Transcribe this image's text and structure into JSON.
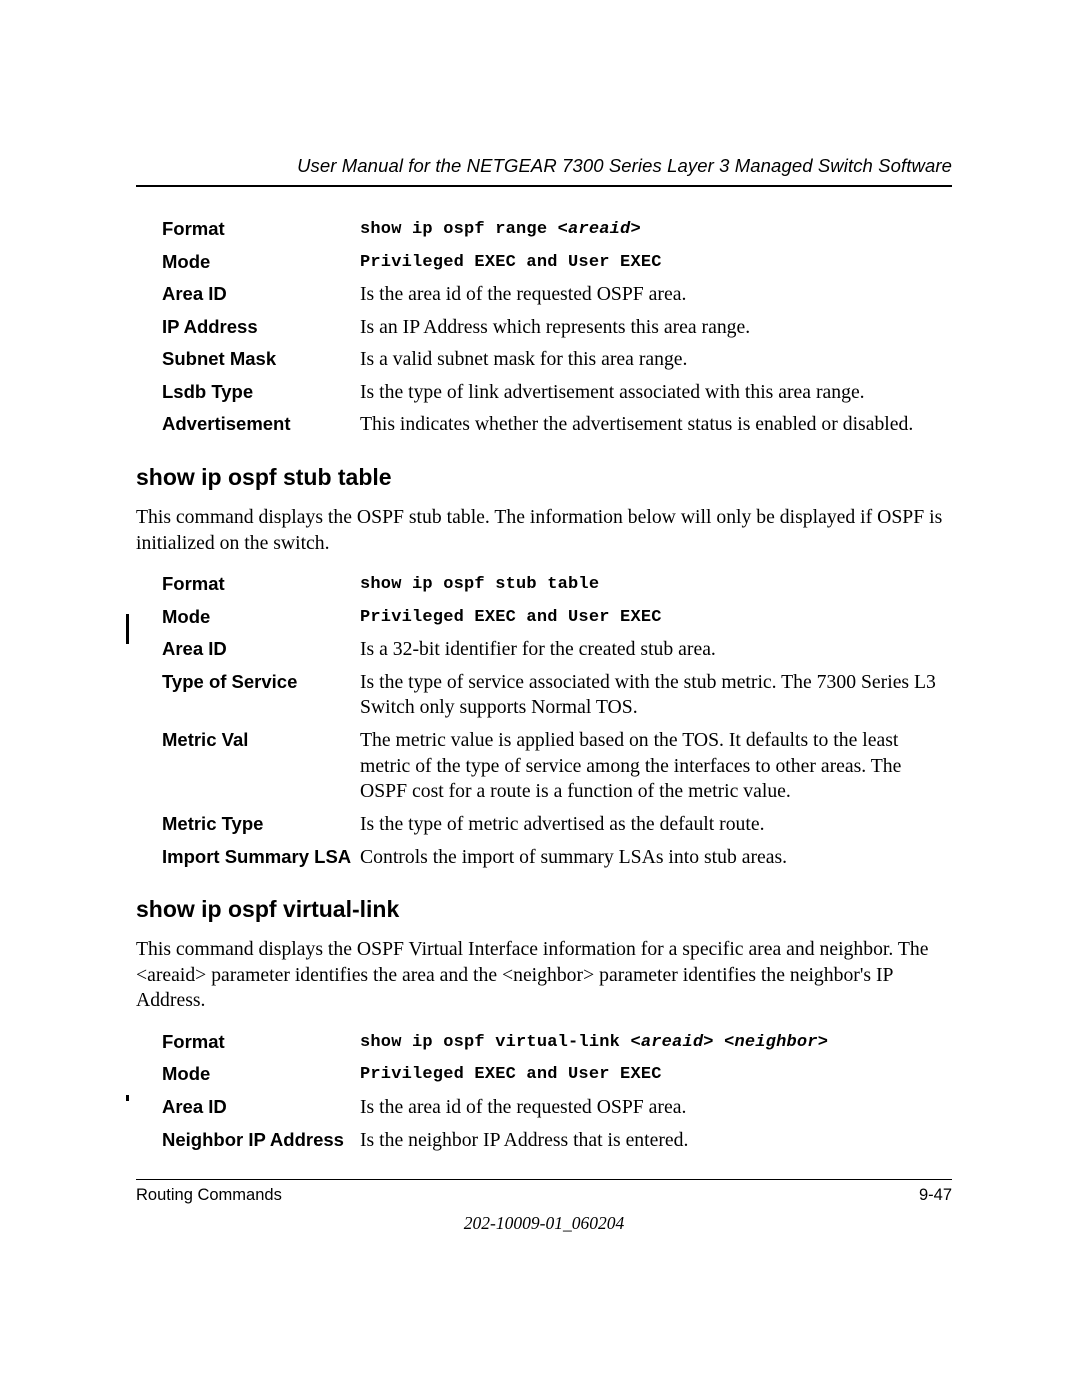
{
  "header": {
    "title": "User Manual for the NETGEAR 7300 Series Layer 3 Managed Switch Software"
  },
  "section1": {
    "rows": {
      "format": {
        "label": "Format",
        "value": "show ip ospf range ",
        "arg": "<areaid>"
      },
      "mode": {
        "label": "Mode",
        "value": "Privileged EXEC and User EXEC"
      },
      "areaid": {
        "label": "Area ID",
        "value": "Is the area id of the requested OSPF area."
      },
      "ipaddress": {
        "label": "IP Address",
        "value": "Is an IP Address which represents this area range."
      },
      "subnetmask": {
        "label": "Subnet Mask",
        "value": "Is a valid subnet mask for this area range."
      },
      "lsdbtype": {
        "label": "Lsdb Type",
        "value": "Is the type of link advertisement associated with this area range."
      },
      "advertisement": {
        "label": "Advertisement",
        "value": "This indicates whether the advertisement status is enabled or disabled."
      }
    }
  },
  "section2": {
    "heading": "show ip ospf stub table",
    "body": "This command displays the OSPF stub table. The information below will only be displayed if OSPF is initialized on the switch.",
    "rows": {
      "format": {
        "label": "Format",
        "value": "show ip ospf stub table"
      },
      "mode": {
        "label": "Mode",
        "value": "Privileged EXEC and User EXEC"
      },
      "areaid": {
        "label": "Area ID",
        "value": "Is a 32-bit identifier for the created stub area."
      },
      "tos": {
        "label": "Type of Service",
        "value": "Is the type of service associated with the stub metric. The 7300 Series L3 Switch only supports Normal TOS."
      },
      "metricval": {
        "label": "Metric Val",
        "value": "The metric value is applied based on the TOS. It defaults to the least metric of the type of service among the interfaces to other areas. The OSPF cost for a route is a function of the metric value."
      },
      "metrictype": {
        "label": "Metric Type",
        "value": "Is the type of metric advertised as the default route."
      },
      "importlsa": {
        "label": "Import Summary LSA",
        "value": "Controls the import of summary LSAs into stub areas."
      }
    }
  },
  "section3": {
    "heading": "show ip ospf virtual-link",
    "body": "This command displays the OSPF Virtual Interface information for a specific area and neighbor. The <areaid> parameter identifies the area and the <neighbor> parameter identifies the neighbor's IP Address.",
    "rows": {
      "format": {
        "label": "Format",
        "value": "show ip ospf virtual-link ",
        "arg1": "<areaid>",
        "arg2": " <neighbor>"
      },
      "mode": {
        "label": "Mode",
        "value": "Privileged EXEC and User EXEC"
      },
      "areaid": {
        "label": "Area ID",
        "value": "Is the area id of the requested OSPF area."
      },
      "neighborip": {
        "label": "Neighbor IP Address",
        "value": "Is the neighbor IP Address that is entered."
      }
    }
  },
  "footer": {
    "left": "Routing Commands",
    "right": "9-47",
    "docnum": "202-10009-01_060204"
  }
}
